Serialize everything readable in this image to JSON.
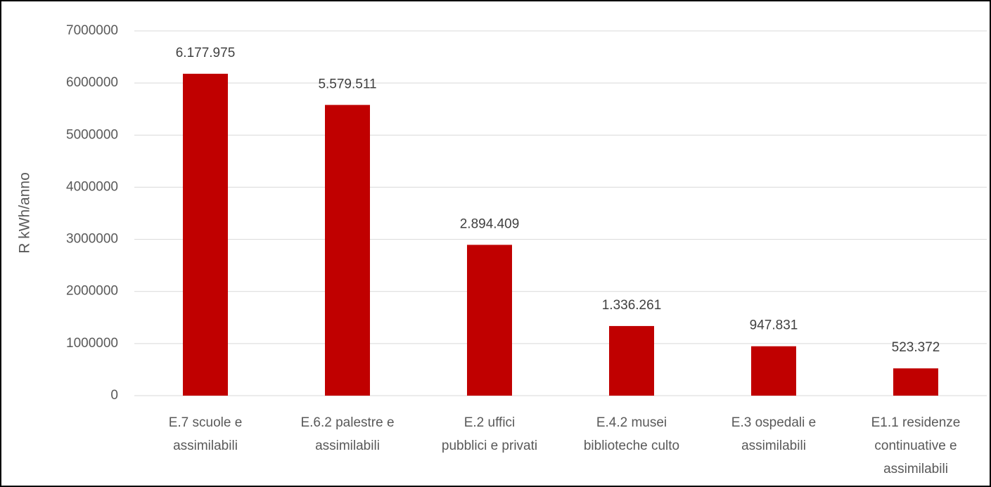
{
  "chart_data": {
    "type": "bar",
    "y_label": "R kWh/anno",
    "categories": [
      "E.7 scuole e assimilabili",
      "E.6.2 palestre e assimilabili",
      "E.2 uffici pubblici e privati",
      "E.4.2 musei biblioteche culto",
      "E.3 ospedali e assimilabili",
      "E1.1 residenze continuative e assimilabili"
    ],
    "values": [
      6177975,
      5579511,
      2894409,
      1336261,
      947831,
      523372
    ],
    "value_labels": [
      "6.177.975",
      "5.579.511",
      "2.894.409",
      "1.336.261",
      "947.831",
      "523.372"
    ],
    "color": "#c00000",
    "ylim": [
      0,
      7000000
    ],
    "yticks": [
      0,
      1000000,
      2000000,
      3000000,
      4000000,
      5000000,
      6000000,
      7000000
    ],
    "grid": true
  }
}
